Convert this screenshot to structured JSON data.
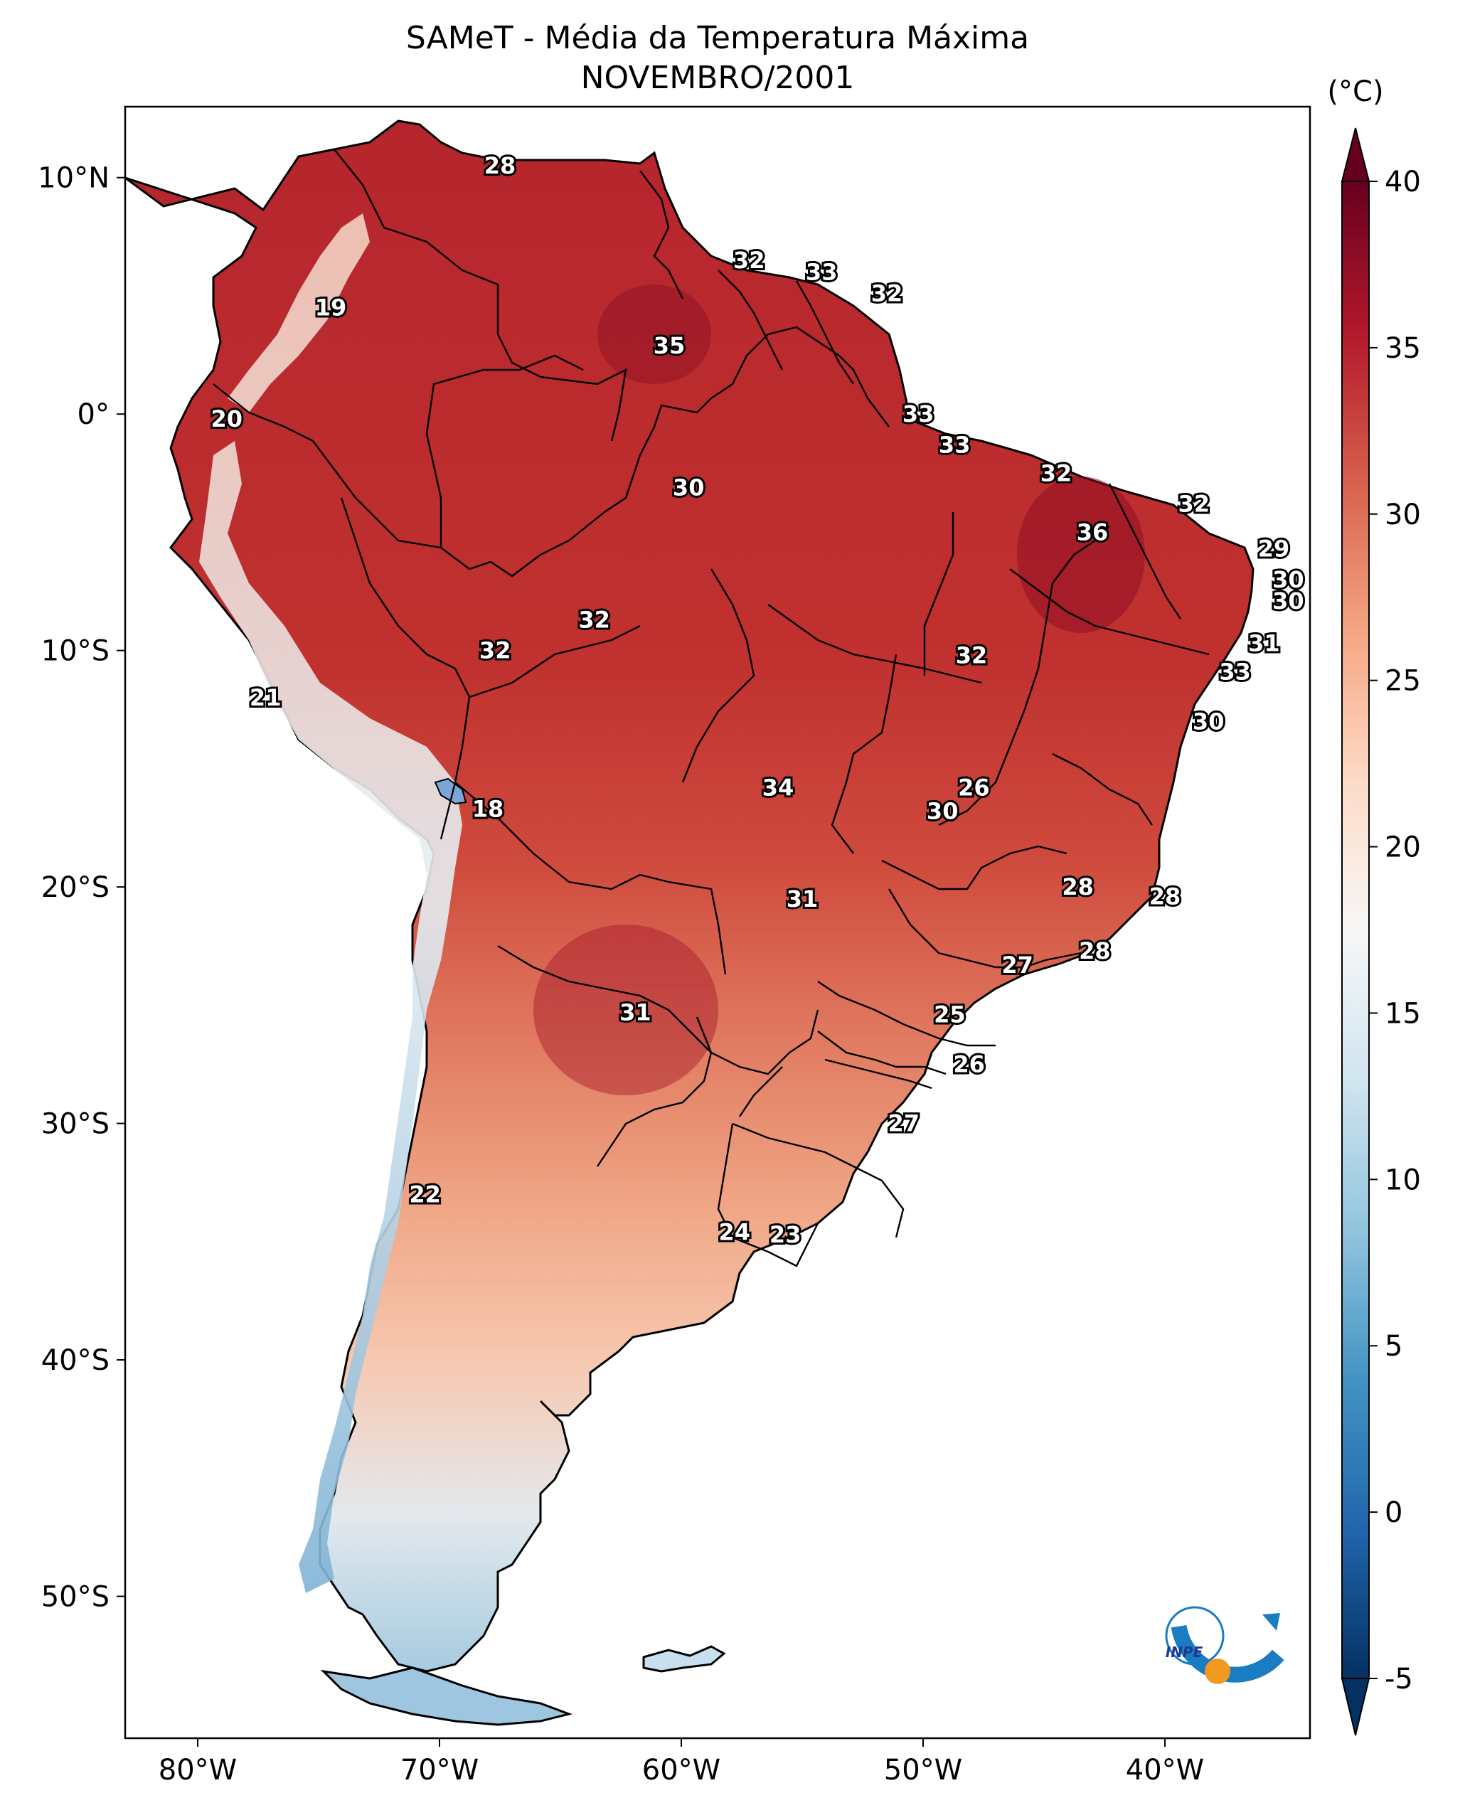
{
  "title": {
    "line1": "SAMeT - Média da Temperatura Máxima",
    "line2": "NOVEMBRO/2001"
  },
  "map": {
    "lon_range": [
      -83,
      -34
    ],
    "lat_range": [
      -56,
      13
    ],
    "lon_ticks": [
      {
        "value": -80,
        "label": "80°W"
      },
      {
        "value": -70,
        "label": "70°W"
      },
      {
        "value": -60,
        "label": "60°W"
      },
      {
        "value": -50,
        "label": "50°W"
      },
      {
        "value": -40,
        "label": "40°W"
      }
    ],
    "lat_ticks": [
      {
        "value": 10,
        "label": "10°N"
      },
      {
        "value": 0,
        "label": "0°"
      },
      {
        "value": -10,
        "label": "10°S"
      },
      {
        "value": -20,
        "label": "20°S"
      },
      {
        "value": -30,
        "label": "30°S"
      },
      {
        "value": -40,
        "label": "40°S"
      },
      {
        "value": -50,
        "label": "50°S"
      }
    ],
    "contour_labels": [
      {
        "text": "28",
        "lon": -67.5,
        "lat": 10.5
      },
      {
        "text": "19",
        "lon": -74.5,
        "lat": 4.5
      },
      {
        "text": "20",
        "lon": -78.8,
        "lat": -0.2
      },
      {
        "text": "32",
        "lon": -57.2,
        "lat": 6.5
      },
      {
        "text": "33",
        "lon": -54.2,
        "lat": 6.0
      },
      {
        "text": "32",
        "lon": -51.5,
        "lat": 5.1
      },
      {
        "text": "35",
        "lon": -60.5,
        "lat": 2.9
      },
      {
        "text": "33",
        "lon": -50.2,
        "lat": 0.0
      },
      {
        "text": "33",
        "lon": -48.7,
        "lat": -1.3
      },
      {
        "text": "32",
        "lon": -44.5,
        "lat": -2.5
      },
      {
        "text": "32",
        "lon": -38.8,
        "lat": -3.8
      },
      {
        "text": "36",
        "lon": -43.0,
        "lat": -5.0
      },
      {
        "text": "29",
        "lon": -35.5,
        "lat": -5.7
      },
      {
        "text": "30",
        "lon": -34.9,
        "lat": -7.0
      },
      {
        "text": "30",
        "lon": -34.9,
        "lat": -7.9
      },
      {
        "text": "30",
        "lon": -59.7,
        "lat": -3.1
      },
      {
        "text": "32",
        "lon": -63.6,
        "lat": -8.7
      },
      {
        "text": "32",
        "lon": -67.7,
        "lat": -10.0
      },
      {
        "text": "32",
        "lon": -48.0,
        "lat": -10.2
      },
      {
        "text": "31",
        "lon": -35.9,
        "lat": -9.7
      },
      {
        "text": "33",
        "lon": -37.1,
        "lat": -10.9
      },
      {
        "text": "21",
        "lon": -77.2,
        "lat": -12.0
      },
      {
        "text": "30",
        "lon": -38.2,
        "lat": -13.0
      },
      {
        "text": "34",
        "lon": -56.0,
        "lat": -15.8
      },
      {
        "text": "26",
        "lon": -47.9,
        "lat": -15.8
      },
      {
        "text": "30",
        "lon": -49.2,
        "lat": -16.8
      },
      {
        "text": "18",
        "lon": -68.0,
        "lat": -16.7
      },
      {
        "text": "28",
        "lon": -43.6,
        "lat": -20.0
      },
      {
        "text": "28",
        "lon": -40.0,
        "lat": -20.4
      },
      {
        "text": "31",
        "lon": -55.0,
        "lat": -20.5
      },
      {
        "text": "27",
        "lon": -46.1,
        "lat": -23.3
      },
      {
        "text": "28",
        "lon": -42.9,
        "lat": -22.7
      },
      {
        "text": "31",
        "lon": -61.9,
        "lat": -25.3
      },
      {
        "text": "25",
        "lon": -48.9,
        "lat": -25.4
      },
      {
        "text": "26",
        "lon": -48.1,
        "lat": -27.5
      },
      {
        "text": "27",
        "lon": -50.8,
        "lat": -30.0
      },
      {
        "text": "22",
        "lon": -70.6,
        "lat": -33.0
      },
      {
        "text": "24",
        "lon": -57.8,
        "lat": -34.6
      },
      {
        "text": "23",
        "lon": -55.7,
        "lat": -34.7
      }
    ]
  },
  "colorbar": {
    "unit": "(°C)",
    "range": [
      -5,
      40
    ],
    "ticks": [
      {
        "value": 40,
        "label": "40"
      },
      {
        "value": 35,
        "label": "35"
      },
      {
        "value": 30,
        "label": "30"
      },
      {
        "value": 25,
        "label": "25"
      },
      {
        "value": 20,
        "label": "20"
      },
      {
        "value": 15,
        "label": "15"
      },
      {
        "value": 10,
        "label": "10"
      },
      {
        "value": 5,
        "label": "5"
      },
      {
        "value": 0,
        "label": "0"
      },
      {
        "value": -5,
        "label": "-5"
      }
    ],
    "colors": [
      "#053061",
      "#2166ac",
      "#4393c3",
      "#92c5de",
      "#d1e5f0",
      "#f7f7f7",
      "#fddbc7",
      "#f4a582",
      "#d6604d",
      "#b2182b",
      "#67001f"
    ]
  },
  "logo": {
    "text": "INPE"
  }
}
